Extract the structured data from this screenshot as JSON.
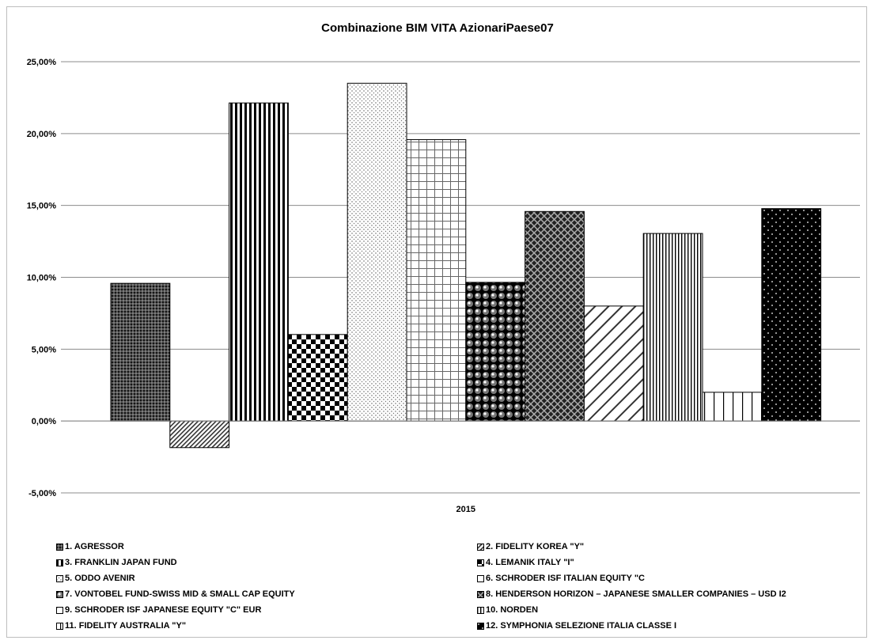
{
  "chart_data": {
    "type": "bar",
    "title": "Combinazione BIM VITA AzionariPaese07",
    "categories": [
      "2015"
    ],
    "ylim": [
      -0.05,
      0.25
    ],
    "yticks": [
      "25,00%",
      "20,00%",
      "15,00%",
      "10,00%",
      "5,00%",
      "0,00%",
      "-5,00%"
    ],
    "ytick_values": [
      0.25,
      0.2,
      0.15,
      0.1,
      0.05,
      0.0,
      -0.05
    ],
    "grid": true,
    "legend_position": "bottom",
    "series": [
      {
        "name": "1. AGRESSOR",
        "values": [
          0.0958
        ],
        "pattern": "dots-dark"
      },
      {
        "name": "2. FIDELITY KOREA \"Y\"",
        "values": [
          -0.0185
        ],
        "pattern": "diag-fine"
      },
      {
        "name": "3. FRANKLIN JAPAN FUND",
        "values": [
          0.2213
        ],
        "pattern": "vstripe-wide"
      },
      {
        "name": "4. LEMANIK ITALY \"I\"",
        "values": [
          0.0602
        ],
        "pattern": "checker"
      },
      {
        "name": "5. ODDO AVENIR",
        "values": [
          0.235
        ],
        "pattern": "dots-light"
      },
      {
        "name": "6. SCHRODER ISF ITALIAN EQUITY \"C",
        "values": [
          0.1958
        ],
        "pattern": "grid"
      },
      {
        "name": "7. VONTOBEL FUND-SWISS MID & SMALL CAP EQUITY",
        "values": [
          0.0965
        ],
        "pattern": "spheres"
      },
      {
        "name": "8. HENDERSON HORIZON – JAPANESE SMALLER COMPANIES – USD I2",
        "values": [
          0.1458
        ],
        "pattern": "crosshatch"
      },
      {
        "name": "9. SCHRODER ISF JAPANESE EQUITY \"C\" EUR",
        "values": [
          0.08
        ],
        "pattern": "diag-wide"
      },
      {
        "name": "10. NORDEN",
        "values": [
          0.1305
        ],
        "pattern": "vstripe-fine"
      },
      {
        "name": "11. FIDELITY AUSTRALIA \"Y\"",
        "values": [
          0.02
        ],
        "pattern": "vstripe-sparse"
      },
      {
        "name": "12. SYMPHONIA SELEZIONE ITALIA CLASSE I",
        "values": [
          0.1478
        ],
        "pattern": "black-dots"
      }
    ]
  }
}
